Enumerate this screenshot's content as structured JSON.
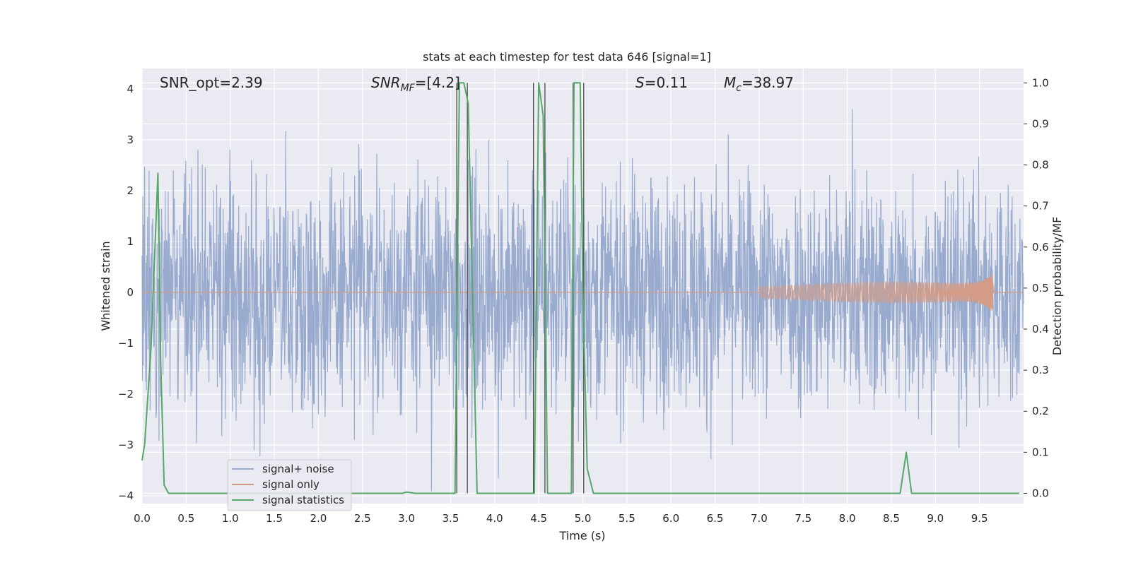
{
  "chart_data": {
    "type": "line",
    "title": "stats at each timestep for test data 646 [signal=1]",
    "xlabel": "Time (s)",
    "ylabel_left": "Whitened strain",
    "ylabel_right": "Detection probability/MF",
    "xlim": [
      0,
      10.0
    ],
    "ylim_left": [
      -4.15,
      4.4
    ],
    "ylim_right": [
      -0.025,
      1.035
    ],
    "x_ticks": [
      0.0,
      0.5,
      1.0,
      1.5,
      2.0,
      2.5,
      3.0,
      3.5,
      4.0,
      4.5,
      5.0,
      5.5,
      6.0,
      6.5,
      7.0,
      7.5,
      8.0,
      8.5,
      9.0,
      9.5
    ],
    "y_ticks_left": [
      -4,
      -3,
      -2,
      -1,
      0,
      1,
      2,
      3,
      4
    ],
    "y_ticks_right": [
      0.0,
      0.1,
      0.2,
      0.3,
      0.4,
      0.5,
      0.6,
      0.7,
      0.8,
      0.9,
      1.0
    ],
    "grid": true,
    "annotations": {
      "snr_opt": "SNR_opt=2.39",
      "snr_mf_base": "SNR",
      "snr_mf_sub": "MF",
      "snr_mf_value": "=[4.2]",
      "s_label": "S",
      "s_value": "=0.11",
      "mc_base": "M",
      "mc_sub": "c",
      "mc_value": "=38.97"
    },
    "legend": {
      "position": "lower-left",
      "entries": [
        "signal+ noise",
        "signal only",
        "signal statistics"
      ]
    },
    "colors": {
      "noise": "#98abce",
      "signal": "#d49c86",
      "stats": "#55a868",
      "markers": "#4a4a4a",
      "plot_bg": "#eaeaf2",
      "grid": "#ffffff"
    },
    "series": [
      {
        "name": "signal+ noise",
        "description_only": "whitened strain noise, amplitude envelope roughly ±2.5 with spikes to ±3.9",
        "envelope": 2.5
      },
      {
        "name": "signal only",
        "chirp_start": 7.0,
        "chirp_end": 9.65,
        "chirp_peak_amplitude": 0.62
      },
      {
        "name": "signal statistics",
        "x": [
          0.0,
          0.03,
          0.1,
          0.18,
          0.21,
          0.25,
          0.3,
          2.95,
          3.0,
          3.1,
          3.55,
          3.6,
          3.65,
          3.7,
          3.8,
          4.4,
          4.45,
          4.5,
          4.55,
          4.6,
          4.87,
          4.9,
          4.97,
          5.0,
          5.05,
          5.12,
          8.6,
          8.67,
          8.73,
          9.95
        ],
        "y": [
          0.08,
          0.12,
          0.35,
          0.78,
          0.33,
          0.02,
          0.0,
          0.0,
          0.003,
          0.0,
          0.0,
          1.0,
          1.0,
          0.95,
          0.0,
          0.0,
          0.0,
          1.0,
          0.92,
          0.0,
          0.0,
          1.0,
          1.0,
          0.5,
          0.06,
          0.0,
          0.0,
          0.1,
          0.0,
          0.0
        ]
      }
    ],
    "marker_lines_x": [
      3.57,
      3.69,
      4.44,
      4.57,
      4.89,
      5.01
    ]
  }
}
